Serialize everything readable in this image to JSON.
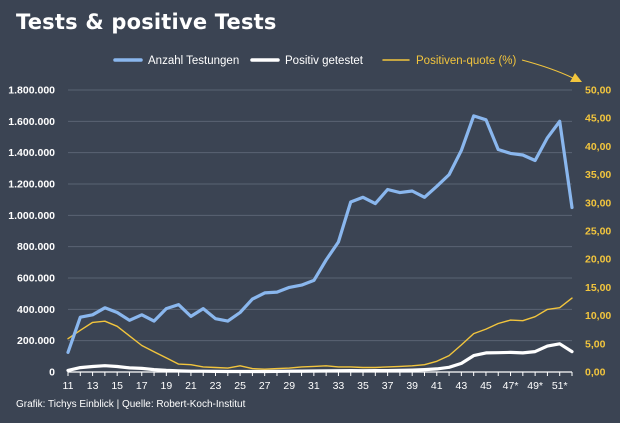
{
  "title": "Tests & positive Tests",
  "source": "Grafik: Tichys Einblick | Quelle: Robert-Koch-Institut",
  "colors": {
    "background": "#3b4453",
    "tests": "#8ab7ee",
    "positive": "#ffffff",
    "rate": "#f2c53d",
    "grid": "#5a6373"
  },
  "chart_data": {
    "type": "line",
    "title": "Tests & positive Tests",
    "x_range": [
      11,
      52
    ],
    "x_tick_labels": [
      "11",
      "13",
      "15",
      "17",
      "19",
      "21",
      "23",
      "25",
      "27",
      "29",
      "31",
      "33",
      "35",
      "37",
      "39",
      "41",
      "43",
      "45",
      "47*",
      "49*",
      "51*"
    ],
    "y_left_range": [
      0,
      1800000
    ],
    "y_left_ticks": [
      "0",
      "200.000",
      "400.000",
      "600.000",
      "800.000",
      "1.000.000",
      "1.200.000",
      "1.400.000",
      "1.600.000",
      "1.800.000"
    ],
    "y_right_range": [
      0,
      50
    ],
    "y_right_ticks": [
      "0,00",
      "5,00",
      "10,00",
      "15,00",
      "20,00",
      "25,00",
      "30,00",
      "35,00",
      "40,00",
      "45,00",
      "50,00"
    ],
    "legend_position": "top",
    "grid": "horizontal",
    "x": [
      11,
      12,
      13,
      14,
      15,
      16,
      17,
      18,
      19,
      20,
      21,
      22,
      23,
      24,
      25,
      26,
      27,
      28,
      29,
      30,
      31,
      32,
      33,
      34,
      35,
      36,
      37,
      38,
      39,
      40,
      41,
      42,
      43,
      44,
      45,
      46,
      47,
      48,
      49,
      50,
      51,
      52
    ],
    "series": [
      {
        "name": "Anzahl Testungen",
        "axis": "left",
        "values": [
          125000,
          350000,
          365000,
          410000,
          380000,
          330000,
          365000,
          325000,
          405000,
          430000,
          355000,
          405000,
          340000,
          325000,
          380000,
          465000,
          505000,
          510000,
          540000,
          555000,
          585000,
          715000,
          830000,
          1085000,
          1115000,
          1075000,
          1165000,
          1145000,
          1155000,
          1115000,
          1185000,
          1260000,
          1415000,
          1635000,
          1610000,
          1420000,
          1395000,
          1385000,
          1350000,
          1495000,
          1600000,
          1050000
        ]
      },
      {
        "name": "Positiv getestet",
        "axis": "left",
        "values": [
          10000,
          28000,
          35000,
          40000,
          35000,
          26000,
          23000,
          15000,
          10000,
          7000,
          5000,
          5000,
          4000,
          3500,
          3000,
          3500,
          3500,
          4000,
          5000,
          6000,
          6500,
          7000,
          8000,
          9000,
          8500,
          9000,
          9000,
          10000,
          12000,
          15000,
          20000,
          30000,
          55000,
          105000,
          122000,
          123000,
          125000,
          122000,
          130000,
          165000,
          180000,
          130000
        ]
      },
      {
        "name": "Positiven-quote (%)",
        "axis": "right",
        "values": [
          5.9,
          7.4,
          8.8,
          9.0,
          8.1,
          6.4,
          4.7,
          3.6,
          2.5,
          1.4,
          1.3,
          0.9,
          0.8,
          0.7,
          1.1,
          0.6,
          0.5,
          0.6,
          0.7,
          0.9,
          1.0,
          1.1,
          0.9,
          0.9,
          0.8,
          0.8,
          0.9,
          1.0,
          1.1,
          1.3,
          1.9,
          2.9,
          4.8,
          6.8,
          7.6,
          8.6,
          9.2,
          9.1,
          9.8,
          11.1,
          11.4,
          13.1
        ]
      }
    ]
  }
}
